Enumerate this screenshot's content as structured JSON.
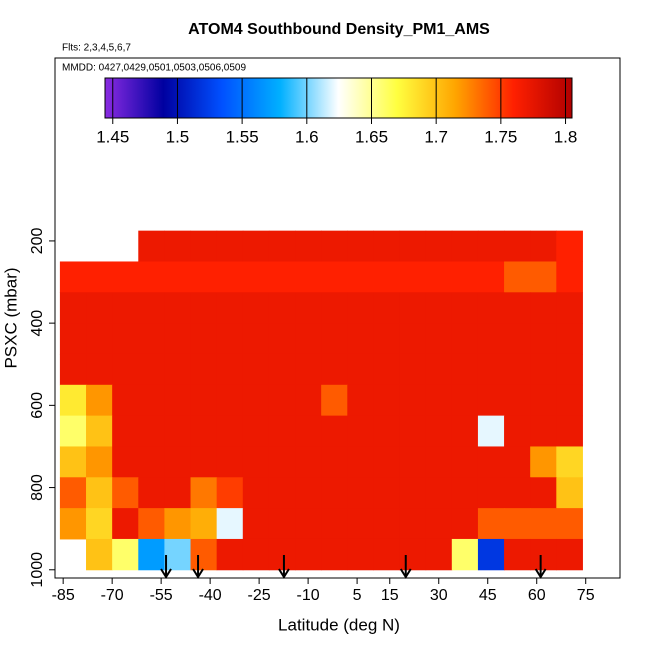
{
  "chart_data": {
    "type": "heatmap",
    "title": "ATOM4 Southbound Density_PM1_AMS",
    "subtitle": "Flts: 2,3,4,5,6,7",
    "annotation": "MMDD: 0427,0429,0501,0503,0506,0509",
    "x_label": "Latitude (deg N)",
    "y_label": "PSXC (mbar)",
    "xlim": [
      -87.5,
      85.5
    ],
    "ylim": [
      1020,
      -245
    ],
    "xticks": [
      -85,
      -70,
      -55,
      -40,
      -25,
      -10,
      5,
      15,
      30,
      45,
      60,
      75
    ],
    "yticks": [
      200,
      400,
      600,
      800,
      1000
    ],
    "x_edges": [
      -86,
      -78,
      -70,
      -62,
      -54,
      -46,
      -38,
      -30,
      -22,
      -14,
      -6,
      2,
      10,
      18,
      26,
      34,
      42,
      50,
      58,
      66,
      74
    ],
    "y_edges": [
      175,
      250,
      325,
      400,
      475,
      550,
      625,
      700,
      775,
      850,
      925,
      1000
    ],
    "values": [
      [
        null,
        null,
        null,
        1.77,
        1.77,
        1.77,
        1.77,
        1.77,
        1.77,
        1.77,
        1.77,
        1.77,
        1.77,
        1.77,
        1.77,
        1.77,
        1.77,
        1.77,
        1.77,
        1.76
      ],
      [
        1.76,
        1.76,
        1.76,
        1.76,
        1.76,
        1.76,
        1.76,
        1.76,
        1.76,
        1.76,
        1.76,
        1.76,
        1.76,
        1.76,
        1.76,
        1.76,
        1.76,
        1.74,
        1.74,
        1.76
      ],
      [
        1.77,
        1.77,
        1.77,
        1.77,
        1.77,
        1.77,
        1.77,
        1.77,
        1.77,
        1.77,
        1.77,
        1.77,
        1.77,
        1.77,
        1.77,
        1.77,
        1.77,
        1.77,
        1.77,
        1.77
      ],
      [
        1.77,
        1.77,
        1.77,
        1.77,
        1.77,
        1.77,
        1.77,
        1.77,
        1.77,
        1.77,
        1.77,
        1.77,
        1.77,
        1.77,
        1.77,
        1.77,
        1.77,
        1.77,
        1.77,
        1.77
      ],
      [
        1.77,
        1.77,
        1.77,
        1.77,
        1.77,
        1.77,
        1.77,
        1.77,
        1.77,
        1.77,
        1.77,
        1.77,
        1.77,
        1.77,
        1.77,
        1.77,
        1.77,
        1.77,
        1.77,
        1.77
      ],
      [
        1.68,
        1.72,
        1.77,
        1.77,
        1.77,
        1.77,
        1.77,
        1.77,
        1.77,
        1.77,
        1.74,
        1.77,
        1.77,
        1.77,
        1.77,
        1.77,
        1.77,
        1.77,
        1.77,
        1.77
      ],
      [
        1.66,
        1.7,
        1.77,
        1.77,
        1.77,
        1.77,
        1.77,
        1.77,
        1.77,
        1.77,
        1.77,
        1.77,
        1.77,
        1.77,
        1.77,
        1.77,
        1.62,
        1.77,
        1.77,
        1.77
      ],
      [
        1.7,
        1.72,
        1.77,
        1.77,
        1.77,
        1.77,
        1.77,
        1.77,
        1.77,
        1.77,
        1.77,
        1.77,
        1.77,
        1.77,
        1.77,
        1.77,
        1.77,
        1.77,
        1.72,
        1.69
      ],
      [
        1.74,
        1.7,
        1.74,
        1.77,
        1.77,
        1.73,
        1.75,
        1.77,
        1.77,
        1.77,
        1.77,
        1.77,
        1.77,
        1.77,
        1.77,
        1.77,
        1.77,
        1.77,
        1.77,
        1.7
      ],
      [
        1.72,
        1.69,
        1.77,
        1.74,
        1.72,
        1.71,
        1.62,
        1.77,
        1.77,
        1.77,
        1.77,
        1.77,
        1.77,
        1.77,
        1.77,
        1.77,
        1.74,
        1.74,
        1.74,
        1.74
      ],
      [
        null,
        1.7,
        1.66,
        1.57,
        1.6,
        1.74,
        1.77,
        1.77,
        1.77,
        1.77,
        1.77,
        1.77,
        1.77,
        1.77,
        1.77,
        1.66,
        1.52,
        1.77,
        1.77,
        1.77
      ]
    ],
    "arrows": [
      -53.5,
      -43.7,
      -17.4,
      19.9,
      61.2
    ],
    "colorbar": {
      "lim": [
        1.444,
        1.805
      ],
      "ticks": [
        1.45,
        1.5,
        1.55,
        1.6,
        1.65,
        1.7,
        1.75,
        1.8
      ],
      "colors": [
        "#8a2be2",
        "#0000a0",
        "#0050ff",
        "#00b0ff",
        "#ffffff",
        "#ffff40",
        "#ffa500",
        "#ff2000",
        "#b00000"
      ]
    }
  }
}
